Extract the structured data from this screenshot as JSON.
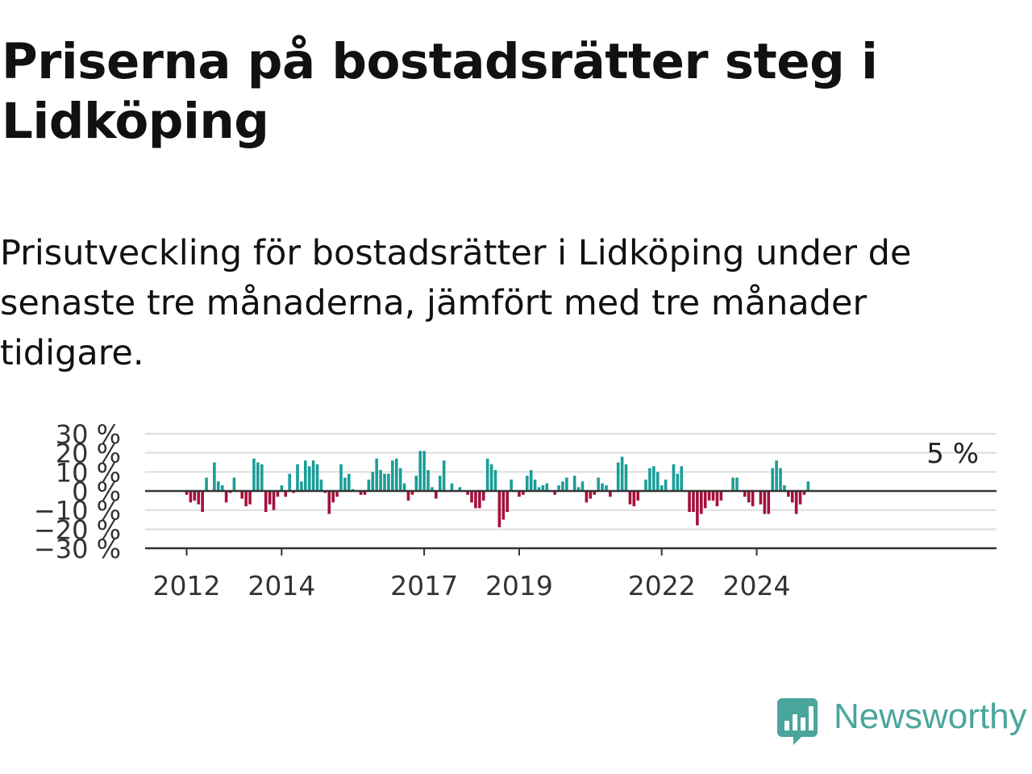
{
  "title": "Priserna på bostadsrätter steg i Lidköping",
  "subtitle": "Prisutveckling för bostadsrätter i Lidköping under de senaste tre månaderna, jämfört med tre månader tidigare.",
  "brand": {
    "name": "Newsworthy",
    "icon": "newsworthy-logo-icon",
    "color": "#4aa69c"
  },
  "chart_data": {
    "type": "bar",
    "title": "",
    "xlabel": "",
    "ylabel": "",
    "ylim": [
      -30,
      30
    ],
    "yticks": [
      30,
      20,
      10,
      0,
      -10,
      -20,
      -30
    ],
    "ytick_labels": [
      "30 %",
      "20 %",
      "10 %",
      "0 %",
      "−10 %",
      "−20 %",
      "−30 %"
    ],
    "xticks": [
      {
        "date": "2012-01",
        "label": "2012"
      },
      {
        "date": "2014-01",
        "label": "2014"
      },
      {
        "date": "2017-01",
        "label": "2017"
      },
      {
        "date": "2019-01",
        "label": "2019"
      },
      {
        "date": "2022-01",
        "label": "2022"
      },
      {
        "date": "2024-01",
        "label": "2024"
      }
    ],
    "grid": true,
    "positive_color": "#1a9e98",
    "negative_color": "#a5103c",
    "annotation": {
      "date": "2025-02",
      "label": "5 %"
    },
    "series": [
      {
        "x": [
          "2012-01",
          "2012-02",
          "2012-03",
          "2012-04",
          "2012-05",
          "2012-06",
          "2012-07",
          "2012-08",
          "2012-09",
          "2012-10",
          "2012-11",
          "2012-12",
          "2013-01",
          "2013-02",
          "2013-03",
          "2013-04",
          "2013-05",
          "2013-06",
          "2013-07",
          "2013-08",
          "2013-09",
          "2013-10",
          "2013-11",
          "2013-12",
          "2014-01",
          "2014-02",
          "2014-03",
          "2014-04",
          "2014-05",
          "2014-06",
          "2014-07",
          "2014-08",
          "2014-09",
          "2014-10",
          "2014-11",
          "2014-12",
          "2015-01",
          "2015-02",
          "2015-03",
          "2015-04",
          "2015-05",
          "2015-06",
          "2015-07",
          "2015-08",
          "2015-09",
          "2015-10",
          "2015-11",
          "2015-12",
          "2016-01",
          "2016-02",
          "2016-03",
          "2016-04",
          "2016-05",
          "2016-06",
          "2016-07",
          "2016-08",
          "2016-09",
          "2016-10",
          "2016-11",
          "2016-12",
          "2017-01",
          "2017-02",
          "2017-03",
          "2017-04",
          "2017-05",
          "2017-06",
          "2017-07",
          "2017-08",
          "2017-09",
          "2017-10",
          "2017-11",
          "2017-12",
          "2018-01",
          "2018-02",
          "2018-03",
          "2018-04",
          "2018-05",
          "2018-06",
          "2018-07",
          "2018-08",
          "2018-09",
          "2018-10",
          "2018-11",
          "2018-12",
          "2019-01",
          "2019-02",
          "2019-03",
          "2019-04",
          "2019-05",
          "2019-06",
          "2019-07",
          "2019-08",
          "2019-09",
          "2019-10",
          "2019-11",
          "2019-12",
          "2020-01",
          "2020-02",
          "2020-03",
          "2020-04",
          "2020-05",
          "2020-06",
          "2020-07",
          "2020-08",
          "2020-09",
          "2020-10",
          "2020-11",
          "2020-12",
          "2021-01",
          "2021-02",
          "2021-03",
          "2021-04",
          "2021-05",
          "2021-06",
          "2021-07",
          "2021-08",
          "2021-09",
          "2021-10",
          "2021-11",
          "2021-12",
          "2022-01",
          "2022-02",
          "2022-03",
          "2022-04",
          "2022-05",
          "2022-06",
          "2022-07",
          "2022-08",
          "2022-09",
          "2022-10",
          "2022-11",
          "2022-12",
          "2023-01",
          "2023-02",
          "2023-03",
          "2023-04",
          "2023-05",
          "2023-06",
          "2023-07",
          "2023-08",
          "2023-09",
          "2023-10",
          "2023-11",
          "2023-12",
          "2024-01",
          "2024-02",
          "2024-03",
          "2024-04",
          "2024-05",
          "2024-06",
          "2024-07",
          "2024-08",
          "2024-09",
          "2024-10",
          "2024-11",
          "2024-12",
          "2025-01",
          "2025-02"
        ],
        "values": [
          -2,
          -6,
          -5,
          -7,
          -11,
          7,
          0,
          15,
          5,
          3,
          -6,
          -1,
          7,
          0,
          -4,
          -8,
          -7,
          17,
          15,
          14,
          -11,
          -7,
          -10,
          -3,
          3,
          -3,
          9,
          -1,
          14,
          5,
          16,
          13,
          16,
          14,
          6,
          -1,
          -12,
          -6,
          -3,
          14,
          7,
          9,
          1,
          0,
          -2,
          -2,
          6,
          10,
          17,
          11,
          9,
          9,
          16,
          17,
          12,
          4,
          -5,
          -2,
          8,
          21,
          21,
          11,
          2,
          -4,
          8,
          16,
          0,
          4,
          0,
          2,
          0,
          -2,
          -6,
          -9,
          -9,
          -5,
          17,
          14,
          11,
          -19,
          -15,
          -11,
          6,
          0,
          -3,
          -2,
          8,
          11,
          6,
          2,
          3,
          4,
          0,
          -2,
          3,
          5,
          7,
          0,
          8,
          2,
          5,
          -6,
          -4,
          -2,
          7,
          4,
          3,
          -3,
          0,
          15,
          18,
          14,
          -7,
          -8,
          -5,
          0,
          6,
          12,
          13,
          10,
          3,
          6,
          0,
          14,
          9,
          13,
          0,
          -11,
          -11,
          -18,
          -12,
          -9,
          -5,
          -5,
          -8,
          -5,
          0,
          0,
          7,
          7,
          0,
          -3,
          -6,
          -8,
          0,
          -7,
          -12,
          -12,
          12,
          16,
          12,
          3,
          -3,
          -6,
          -12,
          -7,
          -2,
          5
        ]
      }
    ]
  }
}
